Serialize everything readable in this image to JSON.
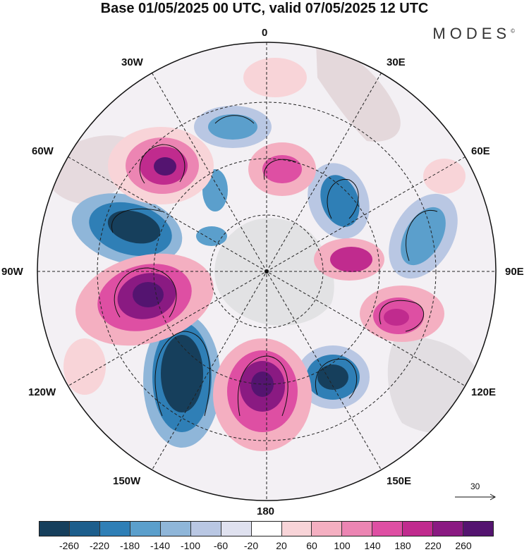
{
  "title": "Base 01/05/2025 00 UTC, valid 07/05/2025 12 UTC",
  "brand": "MODES",
  "brand_mark": "©",
  "longitude_labels": {
    "0": "0",
    "30E": "30E",
    "60E": "60E",
    "90E": "90E",
    "120E": "120E",
    "150E": "150E",
    "180": "180",
    "150W": "150W",
    "120W": "120W",
    "90W": "90W",
    "60W": "60W",
    "30W": "30W"
  },
  "vector_scale": {
    "value": "30"
  },
  "colorbar": {
    "ticks": [
      "-260",
      "-220",
      "-180",
      "-140",
      "-100",
      "-60",
      "-20",
      "20",
      "60",
      "100",
      "140",
      "180",
      "220",
      "260"
    ],
    "colors": [
      "#163f5c",
      "#1d5e8c",
      "#2f7fb6",
      "#5b9fcc",
      "#8fb6d9",
      "#b9c7e3",
      "#dfe1ef",
      "#ffffff",
      "#f8d4d8",
      "#f4afc1",
      "#ec85b3",
      "#de4fa3",
      "#c02b8e",
      "#8a1a82",
      "#541470"
    ]
  },
  "colors": {
    "land": "#d9d9d9",
    "grid": "#222222",
    "neg_strong": "#163f5c",
    "pos_strong": "#541470"
  }
}
